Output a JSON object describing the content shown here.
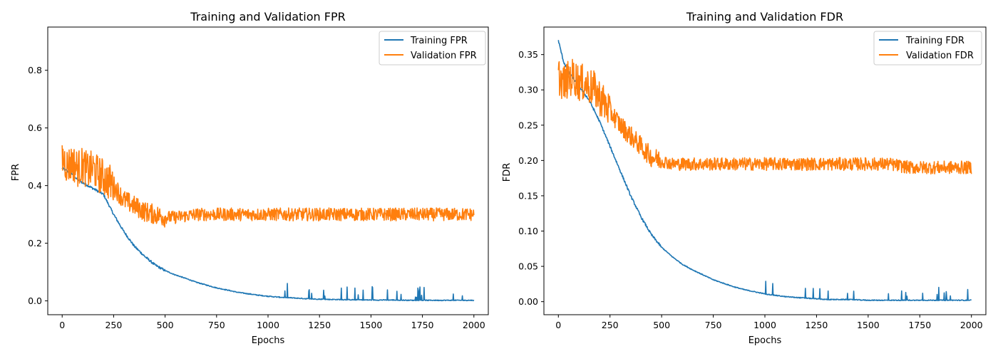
{
  "colors": {
    "training": "#1f77b4",
    "validation": "#ff7f0e"
  },
  "chart_data": [
    {
      "type": "line",
      "title": "Training and Validation FPR",
      "xlabel": "Epochs",
      "ylabel": "FPR",
      "xlim": [
        -70,
        2070
      ],
      "ylim": [
        -0.048,
        0.95
      ],
      "xticks": [
        0,
        250,
        500,
        750,
        1000,
        1250,
        1500,
        1750,
        2000
      ],
      "xtick_labels": [
        "0",
        "250",
        "500",
        "750",
        "1000",
        "1250",
        "1500",
        "1750",
        "2000"
      ],
      "yticks": [
        0.0,
        0.2,
        0.4,
        0.6,
        0.8
      ],
      "ytick_labels": [
        "0.0",
        "0.2",
        "0.4",
        "0.6",
        "0.8"
      ],
      "legend": {
        "placement": "upper right",
        "entries": [
          "Training FPR",
          "Validation FPR"
        ]
      },
      "grid": false,
      "series": [
        {
          "name": "Training FPR",
          "color": "#1f77b4",
          "x": [
            0,
            25,
            50,
            75,
            100,
            125,
            150,
            175,
            200,
            250,
            300,
            350,
            400,
            450,
            500,
            550,
            600,
            650,
            700,
            750,
            800,
            850,
            900,
            950,
            1000,
            1050,
            1100,
            1150,
            1200,
            1250,
            1300,
            1400,
            1500,
            1600,
            1700,
            1800,
            1900,
            2000
          ],
          "y": [
            0.46,
            0.45,
            0.44,
            0.42,
            0.41,
            0.4,
            0.39,
            0.38,
            0.37,
            0.3,
            0.24,
            0.19,
            0.155,
            0.125,
            0.105,
            0.09,
            0.078,
            0.065,
            0.055,
            0.045,
            0.038,
            0.03,
            0.025,
            0.02,
            0.016,
            0.013,
            0.011,
            0.009,
            0.007,
            0.006,
            0.005,
            0.004,
            0.003,
            0.003,
            0.002,
            0.002,
            0.002,
            0.002
          ]
        },
        {
          "name": "Validation FPR",
          "color": "#ff7f0e",
          "x": [
            0,
            25,
            50,
            75,
            100,
            125,
            150,
            175,
            200,
            250,
            300,
            350,
            400,
            450,
            500,
            550,
            600,
            650,
            700,
            750,
            800,
            850,
            900,
            950,
            1000,
            1050,
            1100,
            1150,
            1200,
            1250,
            1300,
            1400,
            1500,
            1600,
            1700,
            1800,
            1900,
            2000
          ],
          "y": [
            0.5,
            0.47,
            0.48,
            0.46,
            0.47,
            0.45,
            0.46,
            0.44,
            0.43,
            0.4,
            0.35,
            0.33,
            0.31,
            0.3,
            0.29,
            0.29,
            0.295,
            0.3,
            0.3,
            0.3,
            0.3,
            0.3,
            0.3,
            0.3,
            0.3,
            0.3,
            0.3,
            0.3,
            0.3,
            0.3,
            0.3,
            0.3,
            0.3,
            0.3,
            0.3,
            0.3,
            0.3,
            0.3
          ]
        }
      ]
    },
    {
      "type": "line",
      "title": "Training and Validation FDR",
      "xlabel": "Epochs",
      "ylabel": "FDR",
      "xlim": [
        -70,
        2070
      ],
      "ylim": [
        -0.0185,
        0.389
      ],
      "xticks": [
        0,
        250,
        500,
        750,
        1000,
        1250,
        1500,
        1750,
        2000
      ],
      "xtick_labels": [
        "0",
        "250",
        "500",
        "750",
        "1000",
        "1250",
        "1500",
        "1750",
        "2000"
      ],
      "yticks": [
        0.0,
        0.05,
        0.1,
        0.15,
        0.2,
        0.25,
        0.3,
        0.35
      ],
      "ytick_labels": [
        "0.00",
        "0.05",
        "0.10",
        "0.15",
        "0.20",
        "0.25",
        "0.30",
        "0.35"
      ],
      "legend": {
        "placement": "upper right",
        "entries": [
          "Training FDR",
          "Validation FDR"
        ]
      },
      "grid": false,
      "series": [
        {
          "name": "Training FDR",
          "color": "#1f77b4",
          "x": [
            0,
            25,
            50,
            75,
            100,
            125,
            150,
            175,
            200,
            250,
            300,
            350,
            400,
            450,
            500,
            550,
            600,
            650,
            700,
            750,
            800,
            850,
            900,
            950,
            1000,
            1050,
            1100,
            1150,
            1200,
            1250,
            1300,
            1400,
            1500,
            1600,
            1700,
            1800,
            1900,
            2000
          ],
          "y": [
            0.37,
            0.34,
            0.325,
            0.315,
            0.305,
            0.295,
            0.285,
            0.27,
            0.255,
            0.22,
            0.185,
            0.15,
            0.12,
            0.095,
            0.077,
            0.064,
            0.053,
            0.045,
            0.038,
            0.031,
            0.026,
            0.021,
            0.017,
            0.014,
            0.011,
            0.009,
            0.007,
            0.006,
            0.005,
            0.004,
            0.003,
            0.003,
            0.002,
            0.002,
            0.002,
            0.002,
            0.002,
            0.002
          ]
        },
        {
          "name": "Validation FDR",
          "color": "#ff7f0e",
          "x": [
            0,
            25,
            50,
            75,
            100,
            125,
            150,
            175,
            200,
            250,
            300,
            350,
            400,
            450,
            500,
            550,
            600,
            650,
            700,
            750,
            800,
            850,
            900,
            950,
            1000,
            1050,
            1100,
            1150,
            1200,
            1250,
            1300,
            1400,
            1500,
            1600,
            1700,
            1800,
            1900,
            2000
          ],
          "y": [
            0.32,
            0.31,
            0.315,
            0.32,
            0.31,
            0.31,
            0.305,
            0.3,
            0.29,
            0.27,
            0.25,
            0.235,
            0.22,
            0.205,
            0.2,
            0.195,
            0.195,
            0.195,
            0.195,
            0.195,
            0.195,
            0.195,
            0.195,
            0.195,
            0.195,
            0.195,
            0.195,
            0.195,
            0.195,
            0.195,
            0.195,
            0.195,
            0.195,
            0.195,
            0.19,
            0.19,
            0.19,
            0.19
          ]
        }
      ]
    }
  ]
}
